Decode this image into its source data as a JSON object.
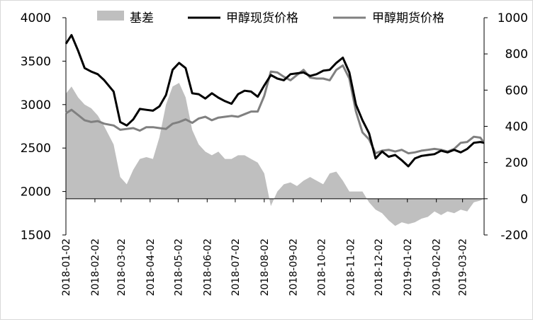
{
  "chart_data": {
    "type": "line",
    "title": "",
    "xlabel": "",
    "ylabel_left": "",
    "ylabel_right": "",
    "ylim_left": [
      1500,
      4000
    ],
    "ylim_right": [
      -200,
      1000
    ],
    "left_ticks": [
      "4000",
      "3500",
      "3000",
      "2500",
      "2000",
      "1500"
    ],
    "right_ticks": [
      "1000",
      "800",
      "600",
      "400",
      "200",
      "0",
      "-200"
    ],
    "x_ticks": [
      "2018-01-02",
      "2018-02-02",
      "2018-03-02",
      "2018-04-02",
      "2018-05-02",
      "2018-06-02",
      "2018-07-02",
      "2018-08-02",
      "2018-09-02",
      "2018-10-02",
      "2018-11-02",
      "2018-12-02",
      "2019-01-02",
      "2019-02-02",
      "2019-03-02"
    ],
    "x_range": [
      "2018-01-02",
      "2019-03-25"
    ],
    "grid": false,
    "legend_position": "top",
    "colors": {
      "basis": "#bfbfbf",
      "spot": "#000000",
      "futures": "#808080"
    },
    "x": [
      "2018-01-02",
      "2018-01-08",
      "2018-01-15",
      "2018-01-22",
      "2018-01-29",
      "2018-02-05",
      "2018-02-12",
      "2018-02-22",
      "2018-03-01",
      "2018-03-08",
      "2018-03-15",
      "2018-03-22",
      "2018-03-29",
      "2018-04-05",
      "2018-04-12",
      "2018-04-19",
      "2018-04-26",
      "2018-05-03",
      "2018-05-10",
      "2018-05-17",
      "2018-05-24",
      "2018-05-31",
      "2018-06-07",
      "2018-06-14",
      "2018-06-21",
      "2018-06-28",
      "2018-07-05",
      "2018-07-12",
      "2018-07-19",
      "2018-07-26",
      "2018-08-02",
      "2018-08-09",
      "2018-08-16",
      "2018-08-23",
      "2018-08-30",
      "2018-09-06",
      "2018-09-13",
      "2018-09-20",
      "2018-09-27",
      "2018-10-04",
      "2018-10-11",
      "2018-10-18",
      "2018-10-25",
      "2018-11-01",
      "2018-11-08",
      "2018-11-15",
      "2018-11-22",
      "2018-11-29",
      "2018-12-06",
      "2018-12-13",
      "2018-12-20",
      "2018-12-27",
      "2019-01-03",
      "2019-01-10",
      "2019-01-17",
      "2019-01-24",
      "2019-01-31",
      "2019-02-07",
      "2019-02-14",
      "2019-02-21",
      "2019-02-28",
      "2019-03-07",
      "2019-03-14",
      "2019-03-21",
      "2019-03-25"
    ],
    "series": [
      {
        "name": "基差",
        "axis": "right",
        "style": "area",
        "values": [
          580,
          620,
          560,
          520,
          500,
          460,
          400,
          300,
          120,
          80,
          160,
          220,
          230,
          220,
          340,
          520,
          620,
          640,
          560,
          380,
          300,
          260,
          240,
          260,
          220,
          220,
          240,
          240,
          220,
          200,
          140,
          -40,
          40,
          80,
          90,
          70,
          100,
          120,
          100,
          80,
          140,
          150,
          100,
          40,
          40,
          40,
          -20,
          -60,
          -80,
          -120,
          -150,
          -130,
          -140,
          -130,
          -110,
          -100,
          -70,
          -90,
          -70,
          -80,
          -60,
          -70,
          -20,
          -10,
          0
        ]
      },
      {
        "name": "甲醇现货价格",
        "axis": "left",
        "style": "line",
        "values": [
          3700,
          3800,
          3620,
          3420,
          3380,
          3350,
          3280,
          3150,
          2800,
          2760,
          2830,
          2950,
          2940,
          2930,
          2980,
          3110,
          3400,
          3480,
          3420,
          3130,
          3120,
          3070,
          3130,
          3080,
          3040,
          3010,
          3120,
          3160,
          3150,
          3090,
          3220,
          3340,
          3300,
          3280,
          3350,
          3360,
          3370,
          3330,
          3350,
          3390,
          3400,
          3480,
          3540,
          3370,
          3000,
          2820,
          2670,
          2380,
          2460,
          2400,
          2420,
          2360,
          2290,
          2380,
          2410,
          2420,
          2430,
          2470,
          2450,
          2480,
          2450,
          2490,
          2560,
          2570,
          2560
        ]
      },
      {
        "name": "甲醇期货价格",
        "axis": "left",
        "style": "line",
        "values": [
          2900,
          2940,
          2880,
          2820,
          2800,
          2810,
          2780,
          2760,
          2710,
          2720,
          2730,
          2700,
          2740,
          2740,
          2730,
          2720,
          2780,
          2800,
          2830,
          2790,
          2840,
          2860,
          2820,
          2850,
          2860,
          2870,
          2860,
          2890,
          2920,
          2920,
          3100,
          3380,
          3370,
          3320,
          3280,
          3340,
          3400,
          3310,
          3300,
          3300,
          3280,
          3400,
          3450,
          3300,
          2920,
          2680,
          2600,
          2440,
          2470,
          2480,
          2460,
          2480,
          2440,
          2450,
          2470,
          2480,
          2490,
          2480,
          2460,
          2490,
          2560,
          2570,
          2630,
          2620,
          2560
        ]
      }
    ]
  },
  "legend": [
    {
      "label": "基差",
      "symbol": "area",
      "color": "#bfbfbf"
    },
    {
      "label": "甲醇现货价格",
      "symbol": "line",
      "color": "#000000"
    },
    {
      "label": "甲醇期货价格",
      "symbol": "line",
      "color": "#808080"
    }
  ]
}
